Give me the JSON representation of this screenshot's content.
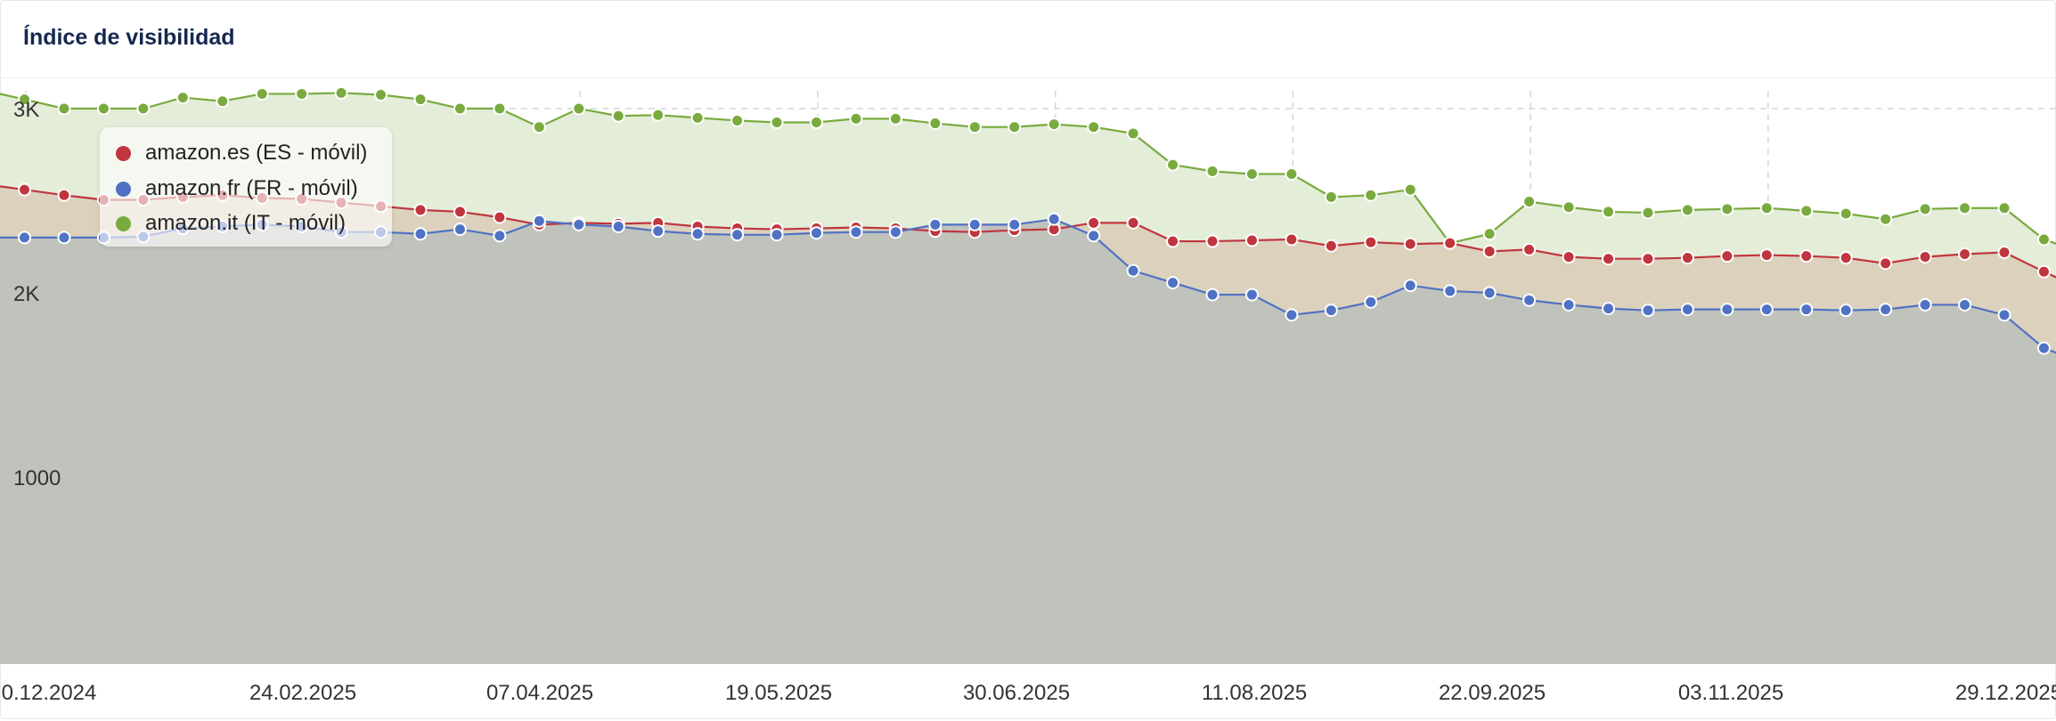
{
  "card": {
    "title": "Índice de visibilidad"
  },
  "colors": {
    "amazon_es": "#c0353e",
    "amazon_fr": "#4f72c4",
    "amazon_it": "#79aa3e",
    "fill_es": "#dcd1bd",
    "fill_fr": "#c0c2bc",
    "fill_it": "#e3edd8",
    "grid": "#d6d6d6"
  },
  "chart_data": {
    "type": "area",
    "title": "Índice de visibilidad",
    "xlabel": "",
    "ylabel": "",
    "x_tick_labels": [
      "0.12.2024",
      "24.02.2025",
      "07.04.2025",
      "19.05.2025",
      "30.06.2025",
      "11.08.2025",
      "22.09.2025",
      "03.11.2025",
      "29.12.2025"
    ],
    "y_tick_labels": [
      "1000",
      "2K",
      "3K"
    ],
    "y_tick_values": [
      1000,
      2000,
      3000
    ],
    "ylim": [
      0,
      3200
    ],
    "grid": true,
    "legend_position": "top-left",
    "x_start": "2024-12-30",
    "x_step_days": 7,
    "series": [
      {
        "name": "amazon.es (ES - móvil)",
        "color_key": "amazon_es",
        "values": [
          2560,
          2530,
          2505,
          2505,
          2520,
          2530,
          2515,
          2510,
          2490,
          2470,
          2450,
          2440,
          2410,
          2370,
          2380,
          2375,
          2380,
          2360,
          2350,
          2345,
          2350,
          2355,
          2350,
          2335,
          2330,
          2340,
          2345,
          2380,
          2380,
          2280,
          2280,
          2285,
          2290,
          2255,
          2275,
          2265,
          2270,
          2225,
          2235,
          2195,
          2185,
          2185,
          2190,
          2200,
          2205,
          2200,
          2190,
          2160,
          2195,
          2210,
          2220,
          2115,
          2015
        ]
      },
      {
        "name": "amazon.fr (FR - móvil)",
        "color_key": "amazon_fr",
        "values": [
          2300,
          2300,
          2300,
          2305,
          2350,
          2360,
          2370,
          2360,
          2330,
          2330,
          2320,
          2345,
          2310,
          2390,
          2370,
          2360,
          2335,
          2320,
          2315,
          2315,
          2325,
          2330,
          2330,
          2370,
          2370,
          2370,
          2400,
          2310,
          2120,
          2055,
          1990,
          1990,
          1880,
          1905,
          1950,
          2040,
          2010,
          2000,
          1960,
          1935,
          1915,
          1905,
          1910,
          1910,
          1910,
          1910,
          1905,
          1910,
          1935,
          1935,
          1880,
          1700,
          1620
        ]
      },
      {
        "name": "amazon.it (IT - móvil)",
        "color_key": "amazon_it",
        "values": [
          3050,
          3000,
          3000,
          3000,
          3060,
          3040,
          3080,
          3080,
          3085,
          3075,
          3050,
          3000,
          3000,
          2900,
          3000,
          2960,
          2965,
          2950,
          2935,
          2925,
          2925,
          2945,
          2945,
          2920,
          2900,
          2900,
          2915,
          2900,
          2865,
          2695,
          2660,
          2645,
          2645,
          2520,
          2530,
          2560,
          2270,
          2320,
          2495,
          2465,
          2440,
          2435,
          2450,
          2455,
          2460,
          2445,
          2430,
          2400,
          2455,
          2460,
          2460,
          2290,
          2215
        ]
      }
    ]
  }
}
